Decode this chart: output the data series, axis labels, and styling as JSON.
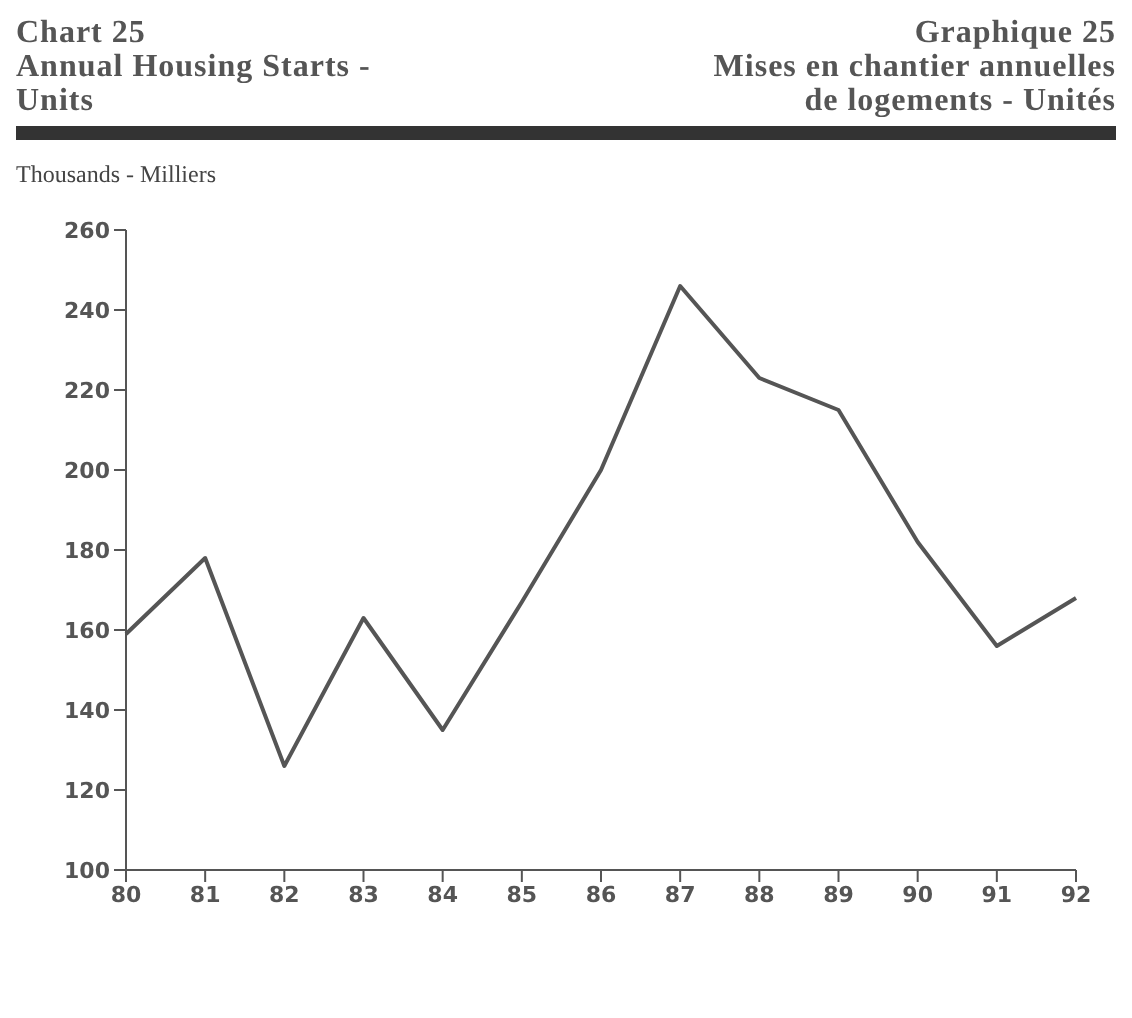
{
  "chart_data": {
    "type": "line",
    "title": "Chart 25\nAnnual Housing Starts -\nUnits",
    "subtitle": "Graphique 25\nMises en chantier annuelles\nde logements - Unités",
    "ylabel": "Thousands - Milliers",
    "categories": [
      "80",
      "81",
      "82",
      "83",
      "84",
      "85",
      "86",
      "87",
      "88",
      "89",
      "90",
      "91",
      "92"
    ],
    "series": [
      {
        "color": "#555555",
        "values": [
          159,
          178,
          126,
          163,
          135,
          167,
          200,
          246,
          223,
          215,
          182,
          156,
          168
        ]
      }
    ],
    "ylim": [
      100,
      260
    ],
    "yticks": [
      100,
      120,
      140,
      160,
      180,
      200,
      220,
      240,
      260
    ],
    "grid": false,
    "legend": false,
    "marker": "none",
    "line_style": "solid"
  }
}
